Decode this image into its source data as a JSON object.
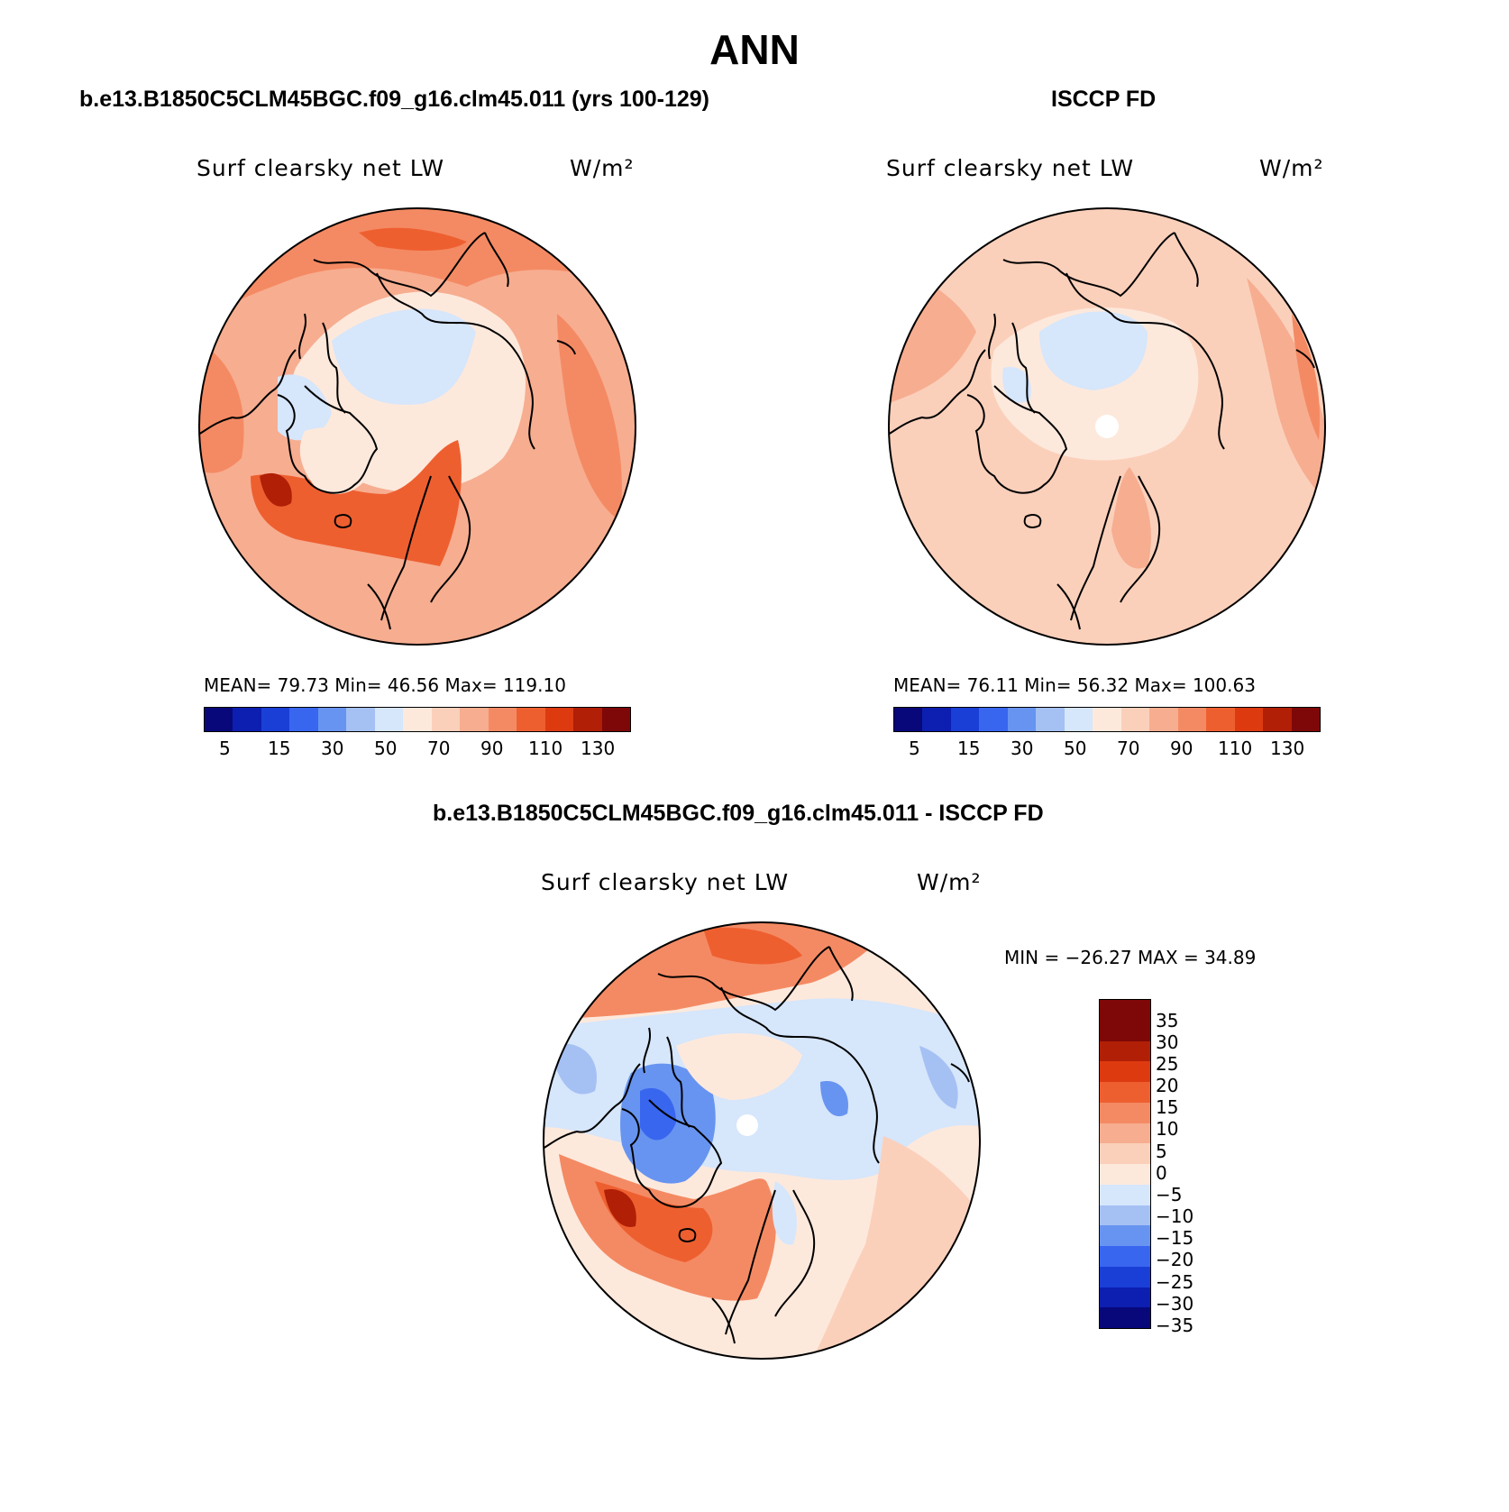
{
  "title": "ANN",
  "panels": {
    "model": {
      "title": "b.e13.B1850C5CLM45BGC.f09_g16.clm45.011 (yrs 100-129)",
      "variable": "Surf clearsky net LW",
      "units": "W/m²",
      "stats": "MEAN=   79.73   Min=   46.56   Max=  119.10",
      "colorbar_ticks": [
        "5",
        "15",
        "30",
        "50",
        "70",
        "90",
        "110",
        "130"
      ]
    },
    "obs": {
      "title": "ISCCP FD",
      "variable": "Surf clearsky net LW",
      "units": "W/m²",
      "stats": "MEAN=   76.11   Min=   56.32   Max=  100.63",
      "colorbar_ticks": [
        "5",
        "15",
        "30",
        "50",
        "70",
        "90",
        "110",
        "130"
      ]
    },
    "diff": {
      "title": "b.e13.B1850C5CLM45BGC.f09_g16.clm45.011 - ISCCP FD",
      "variable": "Surf clearsky net LW",
      "units": "W/m²",
      "minmax": "MIN = −26.27 MAX =   34.89",
      "colorbar_ticks": [
        "35",
        "30",
        "25",
        "20",
        "15",
        "10",
        "5",
        "0",
        "−5",
        "−10",
        "−15",
        "−20",
        "−25",
        "−30",
        "−35"
      ]
    }
  },
  "colors": {
    "abs_scale": [
      "#08087a",
      "#0c1fb0",
      "#1a3fd6",
      "#3866ef",
      "#6794f0",
      "#a5c0f3",
      "#d6e6fb",
      "#fde9dc",
      "#fbd0bb",
      "#f7ad90",
      "#f48a63",
      "#ee5f30",
      "#dd3a10",
      "#b01f06",
      "#7e0807"
    ],
    "diff_scale": [
      "#7e0807",
      "#b01f06",
      "#dd3a10",
      "#ee5f30",
      "#f48a63",
      "#f7ad90",
      "#fbd0bb",
      "#fde9dc",
      "#d6e6fb",
      "#a5c0f3",
      "#6794f0",
      "#3866ef",
      "#1a3fd6",
      "#0c1fb0",
      "#08087a"
    ]
  },
  "chart_data": [
    {
      "type": "heatmap",
      "title": "b.e13.B1850C5CLM45BGC.f09_g16.clm45.011 (yrs 100-129)",
      "projection": "north polar stereographic",
      "variable": "Surf clearsky net LW",
      "units": "W/m2",
      "mean": 79.73,
      "min": 46.56,
      "max": 119.1,
      "contour_levels": [
        5,
        10,
        15,
        20,
        30,
        40,
        50,
        60,
        70,
        80,
        90,
        100,
        110,
        120,
        130
      ]
    },
    {
      "type": "heatmap",
      "title": "ISCCP FD",
      "projection": "north polar stereographic",
      "variable": "Surf clearsky net LW",
      "units": "W/m2",
      "mean": 76.11,
      "min": 56.32,
      "max": 100.63,
      "contour_levels": [
        5,
        10,
        15,
        20,
        30,
        40,
        50,
        60,
        70,
        80,
        90,
        100,
        110,
        120,
        130
      ]
    },
    {
      "type": "heatmap",
      "title": "b.e13.B1850C5CLM45BGC.f09_g16.clm45.011 - ISCCP FD",
      "projection": "north polar stereographic",
      "variable": "Surf clearsky net LW",
      "units": "W/m2",
      "min": -26.27,
      "max": 34.89,
      "contour_levels": [
        -35,
        -30,
        -25,
        -20,
        -15,
        -10,
        -5,
        0,
        5,
        10,
        15,
        20,
        25,
        30,
        35
      ]
    }
  ]
}
